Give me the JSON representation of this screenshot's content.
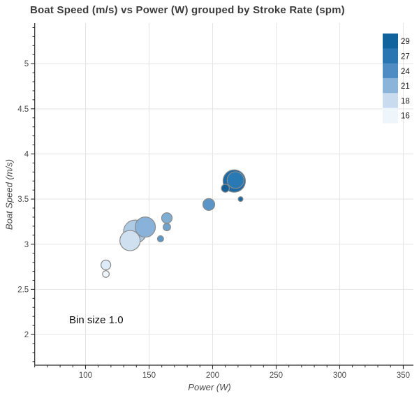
{
  "figure": {
    "title": "Boat Speed (m/s) vs Power (W) grouped by Stroke Rate (spm)",
    "annotation": "Bin size 1.0"
  },
  "chart_data": {
    "type": "scatter",
    "title": "Boat Speed (m/s) vs Power (W) grouped by Stroke Rate (spm)",
    "xlabel": "Power (W)",
    "ylabel": "Boat Speed (m/s)",
    "group_label": "Stroke Rate (spm)",
    "xlim": [
      60,
      358
    ],
    "ylim": [
      1.66,
      5.45
    ],
    "x_major_ticks": [
      100,
      150,
      200,
      250,
      300,
      350
    ],
    "y_major_ticks": [
      2,
      2.5,
      3,
      3.5,
      4,
      4.5,
      5
    ],
    "x_minor_step": 10,
    "y_minor_step": 0.1,
    "grid": "major-only",
    "annotation": "Bin size 1.0",
    "legend": {
      "position": "top-right",
      "entries": [
        {
          "label": "29",
          "color": "#10639c"
        },
        {
          "label": "27",
          "color": "#2a76b2"
        },
        {
          "label": "24",
          "color": "#4e8dc3"
        },
        {
          "label": "21",
          "color": "#8ab4da"
        },
        {
          "label": "18",
          "color": "#c9dcef"
        },
        {
          "label": "16",
          "color": "#eef5fb"
        }
      ]
    },
    "points": [
      {
        "power": 139,
        "speed": 3.14,
        "stroke_rate": 21,
        "radius": 16.5,
        "color": "#aecbe6"
      },
      {
        "power": 135,
        "speed": 3.04,
        "stroke_rate": 18,
        "radius": 14.5,
        "color": "#cfe1f1"
      },
      {
        "power": 147,
        "speed": 3.19,
        "stroke_rate": 21,
        "radius": 14.5,
        "color": "#88b2d9"
      },
      {
        "power": 116,
        "speed": 2.77,
        "stroke_rate": 18,
        "radius": 7.0,
        "color": "#dcebf7"
      },
      {
        "power": 116,
        "speed": 2.67,
        "stroke_rate": 16,
        "radius": 4.8,
        "color": "#eff5fb"
      },
      {
        "power": 164,
        "speed": 3.29,
        "stroke_rate": 21,
        "radius": 7.5,
        "color": "#7fadd4"
      },
      {
        "power": 164,
        "speed": 3.19,
        "stroke_rate": 24,
        "radius": 5.3,
        "color": "#6ea3cd"
      },
      {
        "power": 159,
        "speed": 3.06,
        "stroke_rate": 24,
        "radius": 4.4,
        "color": "#5b97c8"
      },
      {
        "power": 197,
        "speed": 3.44,
        "stroke_rate": 24,
        "radius": 8.5,
        "color": "#5b94c6"
      },
      {
        "power": 217,
        "speed": 3.7,
        "stroke_rate": 29,
        "radius": 16.0,
        "color": "#1c6aa3"
      },
      {
        "power": 218,
        "speed": 3.71,
        "stroke_rate": 27,
        "radius": 12.0,
        "color": "#2979b4"
      },
      {
        "power": 210,
        "speed": 3.62,
        "stroke_rate": 29,
        "radius": 5.7,
        "color": "#155f97"
      },
      {
        "power": 222,
        "speed": 3.5,
        "stroke_rate": 29,
        "radius": 3.4,
        "color": "#1b67a0"
      }
    ],
    "style_colors": {
      "grid": "#e4e4e4",
      "spine": "#2b2b2b",
      "tick_label": "#4a4a4a",
      "marker_outline": "#8a8a8a",
      "legend_label": "#1a1a1a"
    }
  }
}
